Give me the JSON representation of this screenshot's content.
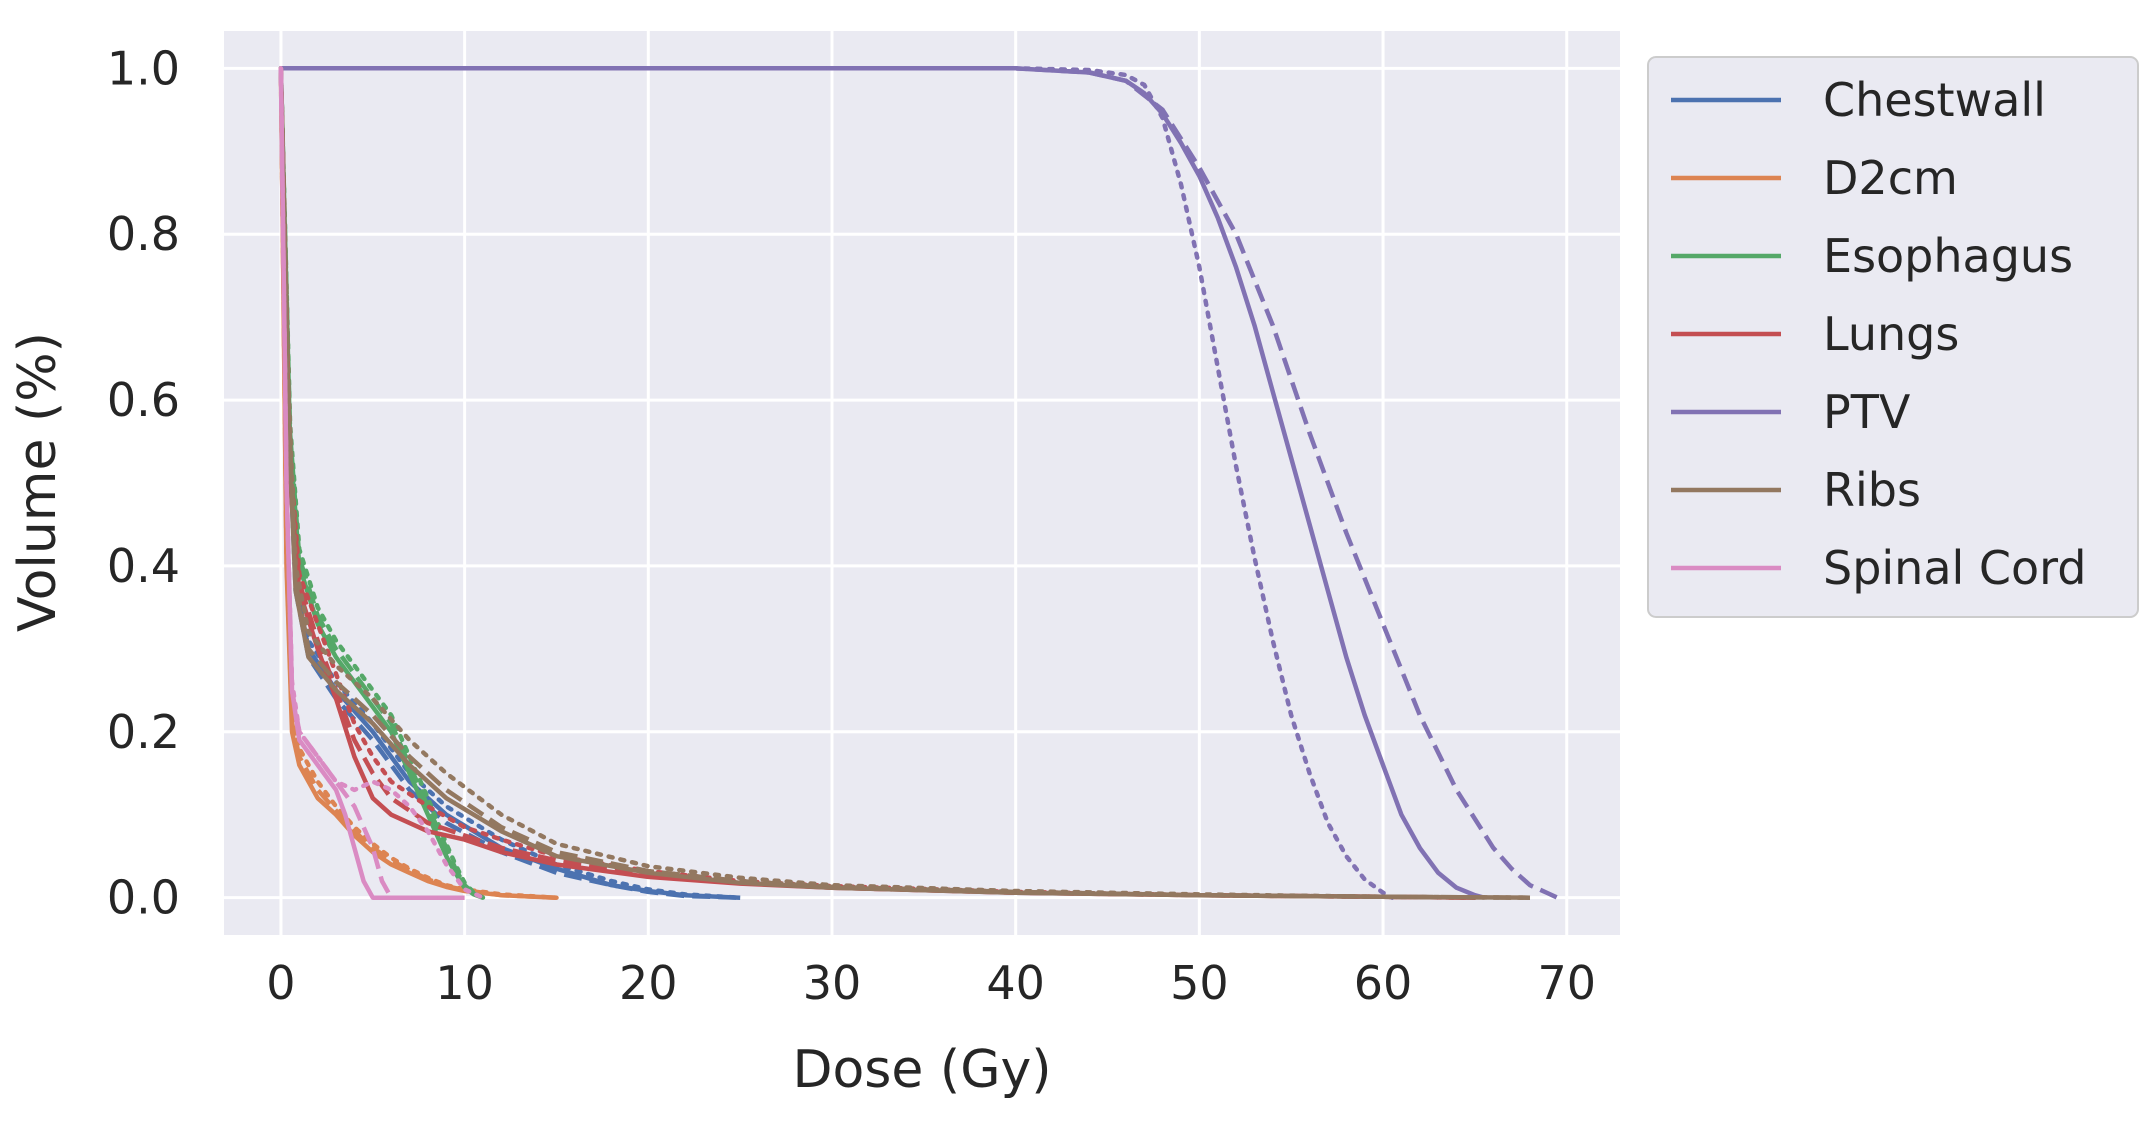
{
  "chart_data": {
    "type": "line",
    "title": "",
    "xlabel": "Dose (Gy)",
    "ylabel": "Volume (%)",
    "xlim": [
      -3.1,
      72.9
    ],
    "ylim": [
      -0.045,
      1.045
    ],
    "xticks": [
      0,
      10,
      20,
      30,
      40,
      50,
      60,
      70
    ],
    "xtick_labels": [
      "0",
      "10",
      "20",
      "30",
      "40",
      "50",
      "60",
      "70"
    ],
    "yticks": [
      0.0,
      0.2,
      0.4,
      0.6,
      0.8,
      1.0
    ],
    "ytick_labels": [
      "0.0",
      "0.2",
      "0.4",
      "0.6",
      "0.8",
      "1.0"
    ],
    "grid": true,
    "background": "#EAEAF2",
    "grid_color": "#FFFFFF",
    "legend_position": "outside-top-right",
    "line_styles": [
      "solid",
      "dashed",
      "dotted"
    ],
    "series": [
      {
        "name": "Chestwall",
        "color": "#4C72B0",
        "variants": [
          {
            "style": "solid",
            "x": [
              0,
              0.4,
              0.8,
              1.5,
              3,
              5,
              7,
              9,
              12,
              15,
              18,
              20,
              22,
              25
            ],
            "y": [
              1.0,
              0.6,
              0.38,
              0.3,
              0.25,
              0.2,
              0.14,
              0.1,
              0.06,
              0.035,
              0.015,
              0.008,
              0.003,
              0.0
            ]
          },
          {
            "style": "dashed",
            "x": [
              0,
              0.4,
              0.8,
              1.5,
              3,
              5,
              7,
              9,
              12,
              15,
              18,
              20,
              22,
              25
            ],
            "y": [
              1.0,
              0.58,
              0.37,
              0.29,
              0.24,
              0.19,
              0.13,
              0.09,
              0.055,
              0.03,
              0.015,
              0.007,
              0.002,
              0.0
            ]
          },
          {
            "style": "dotted",
            "x": [
              0,
              0.4,
              0.8,
              1.5,
              3,
              5,
              7,
              9,
              12,
              15,
              18,
              20,
              22,
              25
            ],
            "y": [
              1.0,
              0.62,
              0.4,
              0.31,
              0.26,
              0.21,
              0.15,
              0.11,
              0.07,
              0.04,
              0.02,
              0.01,
              0.004,
              0.0
            ]
          }
        ]
      },
      {
        "name": "D2cm",
        "color": "#DD8452",
        "variants": [
          {
            "style": "solid",
            "x": [
              0,
              0.3,
              0.6,
              1,
              2,
              3,
              4,
              5,
              6,
              7,
              8,
              9,
              10,
              12,
              15
            ],
            "y": [
              1.0,
              0.4,
              0.2,
              0.16,
              0.12,
              0.1,
              0.075,
              0.055,
              0.04,
              0.03,
              0.02,
              0.013,
              0.008,
              0.003,
              0.0
            ]
          },
          {
            "style": "dashed",
            "x": [
              0,
              0.3,
              0.6,
              1,
              2,
              3,
              4,
              5,
              6,
              7,
              8,
              9,
              10,
              12,
              15
            ],
            "y": [
              1.0,
              0.41,
              0.21,
              0.17,
              0.13,
              0.105,
              0.08,
              0.06,
              0.045,
              0.033,
              0.022,
              0.014,
              0.009,
              0.003,
              0.0
            ]
          },
          {
            "style": "dotted",
            "x": [
              0,
              0.3,
              0.6,
              1,
              2,
              3,
              4,
              5,
              6,
              7,
              8,
              9,
              10,
              12,
              15
            ],
            "y": [
              1.0,
              0.42,
              0.22,
              0.18,
              0.14,
              0.11,
              0.085,
              0.065,
              0.048,
              0.035,
              0.024,
              0.015,
              0.01,
              0.004,
              0.0
            ]
          }
        ]
      },
      {
        "name": "Esophagus",
        "color": "#55A868",
        "variants": [
          {
            "style": "solid",
            "x": [
              0,
              0.5,
              1,
              2,
              3,
              4,
              5,
              6,
              7,
              8,
              9,
              9.5,
              10,
              10.5,
              11
            ],
            "y": [
              1.0,
              0.55,
              0.4,
              0.33,
              0.29,
              0.26,
              0.23,
              0.2,
              0.15,
              0.1,
              0.05,
              0.03,
              0.012,
              0.004,
              0.0
            ]
          },
          {
            "style": "dashed",
            "x": [
              0,
              0.5,
              1,
              2,
              3,
              4,
              5,
              6,
              7,
              8,
              9,
              9.5,
              10,
              10.5,
              11
            ],
            "y": [
              1.0,
              0.56,
              0.41,
              0.34,
              0.3,
              0.27,
              0.24,
              0.21,
              0.16,
              0.11,
              0.06,
              0.035,
              0.015,
              0.005,
              0.0
            ]
          },
          {
            "style": "dotted",
            "x": [
              0,
              0.5,
              1,
              2,
              3,
              4,
              5,
              6,
              7,
              8,
              9,
              9.5,
              10,
              10.5,
              11
            ],
            "y": [
              1.0,
              0.57,
              0.42,
              0.35,
              0.31,
              0.28,
              0.25,
              0.22,
              0.17,
              0.12,
              0.065,
              0.04,
              0.018,
              0.006,
              0.0
            ]
          }
        ]
      },
      {
        "name": "Lungs",
        "color": "#C44E52",
        "variants": [
          {
            "style": "solid",
            "x": [
              0,
              0.5,
              1,
              2,
              3,
              4,
              5,
              6,
              8,
              10,
              12,
              15,
              20,
              25,
              30,
              40,
              50,
              60,
              65
            ],
            "y": [
              1.0,
              0.5,
              0.37,
              0.3,
              0.24,
              0.17,
              0.12,
              0.1,
              0.08,
              0.07,
              0.055,
              0.04,
              0.025,
              0.017,
              0.012,
              0.006,
              0.003,
              0.001,
              0.0
            ]
          },
          {
            "style": "dashed",
            "x": [
              0,
              0.5,
              1,
              2,
              3,
              4,
              5,
              6,
              8,
              10,
              12,
              15,
              20,
              25,
              30,
              40,
              50,
              60,
              65
            ],
            "y": [
              1.0,
              0.52,
              0.38,
              0.31,
              0.25,
              0.19,
              0.15,
              0.12,
              0.09,
              0.075,
              0.06,
              0.045,
              0.028,
              0.018,
              0.012,
              0.006,
              0.003,
              0.001,
              0.0
            ]
          },
          {
            "style": "dotted",
            "x": [
              0,
              0.5,
              1,
              2,
              3,
              4,
              5,
              6,
              8,
              10,
              12,
              15,
              20,
              25,
              30,
              40,
              50,
              60,
              65
            ],
            "y": [
              1.0,
              0.53,
              0.39,
              0.33,
              0.27,
              0.21,
              0.17,
              0.14,
              0.11,
              0.085,
              0.07,
              0.05,
              0.032,
              0.02,
              0.014,
              0.007,
              0.003,
              0.001,
              0.0
            ]
          }
        ]
      },
      {
        "name": "PTV",
        "color": "#8172B3",
        "variants": [
          {
            "style": "solid",
            "x": [
              0,
              40,
              44,
              46,
              47,
              48,
              49,
              50,
              51,
              52,
              53,
              54,
              55,
              56,
              57,
              58,
              59,
              60,
              61,
              62,
              63,
              64,
              65,
              65.5
            ],
            "y": [
              1.0,
              1.0,
              0.995,
              0.985,
              0.97,
              0.945,
              0.91,
              0.87,
              0.82,
              0.76,
              0.69,
              0.61,
              0.53,
              0.45,
              0.37,
              0.29,
              0.22,
              0.16,
              0.1,
              0.06,
              0.03,
              0.012,
              0.003,
              0.0
            ]
          },
          {
            "style": "dashed",
            "x": [
              0,
              40,
              44,
              46,
              48,
              50,
              52,
              54,
              56,
              58,
              60,
              62,
              64,
              66,
              67,
              68,
              69,
              69.5
            ],
            "y": [
              1.0,
              1.0,
              0.995,
              0.985,
              0.95,
              0.88,
              0.8,
              0.69,
              0.56,
              0.44,
              0.33,
              0.22,
              0.13,
              0.06,
              0.035,
              0.015,
              0.005,
              0.0
            ]
          },
          {
            "style": "dotted",
            "x": [
              0,
              40,
              44,
              46,
              47,
              48,
              49,
              50,
              51,
              52,
              53,
              54,
              55,
              56,
              57,
              58,
              59,
              60,
              60.5
            ],
            "y": [
              1.0,
              1.0,
              0.998,
              0.992,
              0.98,
              0.94,
              0.86,
              0.76,
              0.64,
              0.52,
              0.41,
              0.31,
              0.22,
              0.15,
              0.09,
              0.05,
              0.022,
              0.006,
              0.0
            ]
          }
        ]
      },
      {
        "name": "Ribs",
        "color": "#937860",
        "variants": [
          {
            "style": "solid",
            "x": [
              0,
              0.4,
              0.8,
              1.5,
              3,
              5,
              7,
              9,
              12,
              15,
              20,
              25,
              30,
              40,
              50,
              60,
              68
            ],
            "y": [
              1.0,
              0.58,
              0.37,
              0.29,
              0.25,
              0.21,
              0.16,
              0.12,
              0.08,
              0.05,
              0.03,
              0.018,
              0.012,
              0.006,
              0.003,
              0.001,
              0.0
            ]
          },
          {
            "style": "dashed",
            "x": [
              0,
              0.4,
              0.8,
              1.5,
              3,
              5,
              7,
              9,
              12,
              15,
              20,
              25,
              30,
              40,
              50,
              60,
              68
            ],
            "y": [
              1.0,
              0.6,
              0.38,
              0.3,
              0.26,
              0.22,
              0.17,
              0.13,
              0.085,
              0.055,
              0.032,
              0.02,
              0.013,
              0.007,
              0.003,
              0.001,
              0.0
            ]
          },
          {
            "style": "dotted",
            "x": [
              0,
              0.4,
              0.8,
              1.5,
              3,
              5,
              7,
              9,
              12,
              15,
              20,
              25,
              30,
              40,
              50,
              60,
              68
            ],
            "y": [
              1.0,
              0.62,
              0.4,
              0.32,
              0.28,
              0.24,
              0.19,
              0.15,
              0.1,
              0.065,
              0.038,
              0.024,
              0.015,
              0.008,
              0.004,
              0.001,
              0.0
            ]
          }
        ]
      },
      {
        "name": "Spinal Cord",
        "color": "#DA8BC3",
        "variants": [
          {
            "style": "solid",
            "x": [
              0,
              0.3,
              0.6,
              1,
              2,
              3,
              3.5,
              4,
              4.5,
              5,
              6,
              10
            ],
            "y": [
              1.0,
              0.5,
              0.25,
              0.19,
              0.16,
              0.13,
              0.1,
              0.06,
              0.02,
              0.0,
              0.0,
              0.0
            ]
          },
          {
            "style": "dashed",
            "x": [
              0,
              0.3,
              0.6,
              1,
              2,
              3,
              4,
              5,
              5.5,
              6,
              10
            ],
            "y": [
              1.0,
              0.5,
              0.25,
              0.2,
              0.17,
              0.14,
              0.11,
              0.06,
              0.02,
              0.0,
              0.0
            ]
          },
          {
            "style": "dotted",
            "x": [
              0,
              0.3,
              0.6,
              1,
              2,
              3,
              4,
              5,
              6,
              7,
              8,
              9,
              10,
              11
            ],
            "y": [
              1.0,
              0.5,
              0.26,
              0.2,
              0.17,
              0.14,
              0.13,
              0.14,
              0.13,
              0.11,
              0.08,
              0.04,
              0.01,
              0.0
            ]
          }
        ]
      }
    ]
  }
}
